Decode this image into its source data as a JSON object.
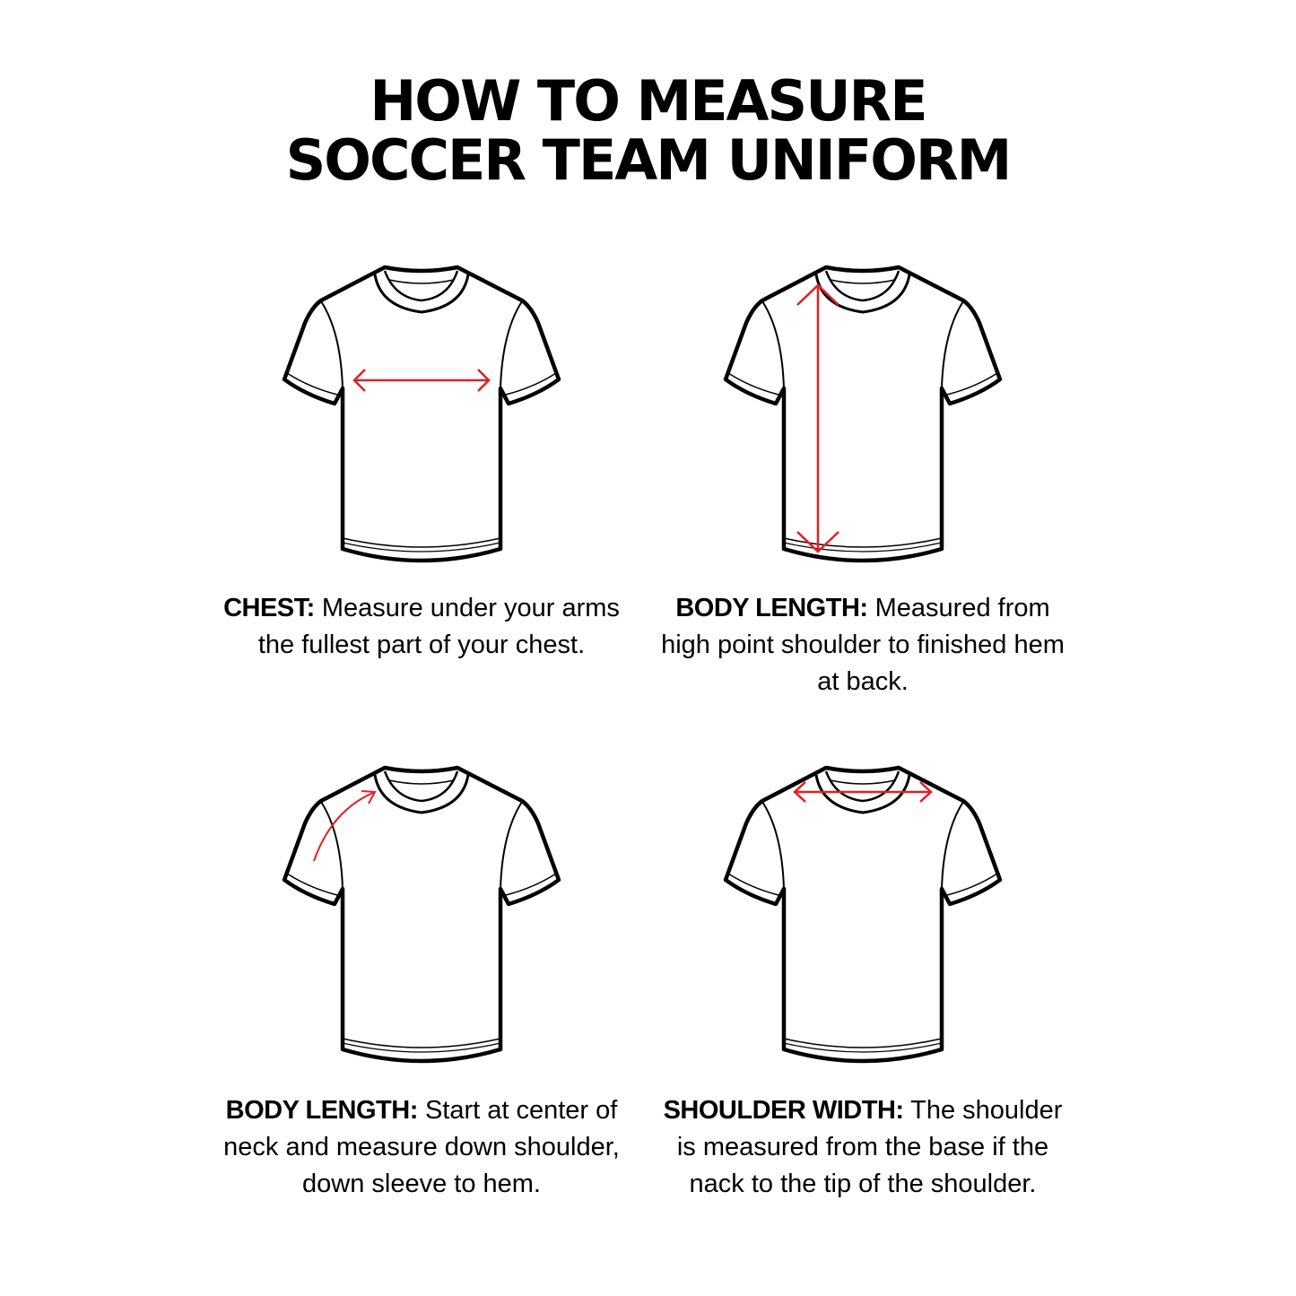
{
  "title": {
    "line1": "HOW TO MEASURE",
    "line2": "SOCCER TEAM UNIFORM"
  },
  "colors": {
    "arrow": "#e41e26",
    "outline": "#000000"
  },
  "panels": [
    {
      "label": "CHEST:",
      "text": "Measure under your arms the fullest part of your chest.",
      "measurement": "chest-horizontal-arrow"
    },
    {
      "label": "BODY LENGTH:",
      "text": "Measured from high point shoulder to finished hem at back.",
      "measurement": "vertical-length-arrow"
    },
    {
      "label": "BODY LENGTH:",
      "text": "Start at center of neck and measure down shoulder, down sleeve to hem.",
      "measurement": "curved-shoulder-arrow"
    },
    {
      "label": "SHOULDER WIDTH:",
      "text": "The shoulder is measured from the base if the nack to the tip of the shoulder.",
      "measurement": "shoulder-horizontal-arrow"
    }
  ]
}
